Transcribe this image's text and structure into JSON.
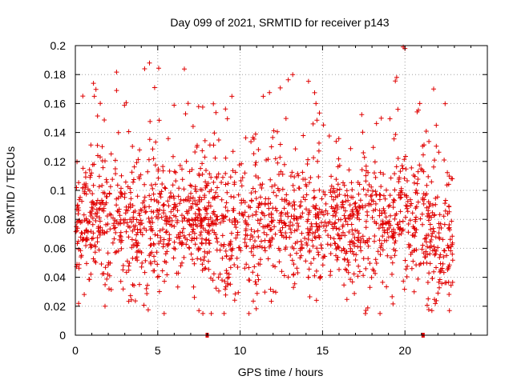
{
  "chart_data": {
    "type": "scatter",
    "title": "Day 099 of 2021, SRMTID for receiver p143",
    "xlabel": "GPS time / hours",
    "ylabel": "SRMTID / TECUs",
    "xlim": [
      0,
      25
    ],
    "ylim": [
      0,
      0.2
    ],
    "x_ticks": [
      0,
      5,
      10,
      15,
      20
    ],
    "x_tick_labels": [
      "0",
      "5",
      "10",
      "15",
      "20"
    ],
    "y_ticks": [
      0,
      0.02,
      0.04,
      0.06,
      0.08,
      0.1,
      0.12,
      0.14,
      0.16,
      0.18,
      0.2
    ],
    "y_tick_labels": [
      "0",
      "0.02",
      "0.04",
      "0.06",
      "0.08",
      "0.1",
      "0.12",
      "0.14",
      "0.16",
      "0.18",
      "0.2"
    ],
    "grid": true,
    "marker": "+",
    "color": "#e00000",
    "series": [
      {
        "name": "SRMTID",
        "x_start": 0.0,
        "x_end": 22.9,
        "n_points": 1800,
        "y_mean": 0.076,
        "y_spread": 0.022,
        "y_range": [
          0.015,
          0.199
        ],
        "highlights": [
          {
            "x": 4.2,
            "y": 0.184
          },
          {
            "x": 4.5,
            "y": 0.188
          },
          {
            "x": 19.9,
            "y": 0.199
          },
          {
            "x": 20.0,
            "y": 0.198
          },
          {
            "x": 1.1,
            "y": 0.174
          },
          {
            "x": 2.5,
            "y": 0.169
          },
          {
            "x": 11.4,
            "y": 0.165
          },
          {
            "x": 9.5,
            "y": 0.165
          },
          {
            "x": 14.6,
            "y": 0.16
          },
          {
            "x": 20.9,
            "y": 0.16
          },
          {
            "x": 1.8,
            "y": 0.02
          },
          {
            "x": 0.2,
            "y": 0.022
          },
          {
            "x": 7.5,
            "y": 0.017
          },
          {
            "x": 22.7,
            "y": 0.017
          },
          {
            "x": 17.6,
            "y": 0.015
          }
        ]
      }
    ],
    "axis_markers": [
      8.0,
      21.1
    ]
  }
}
